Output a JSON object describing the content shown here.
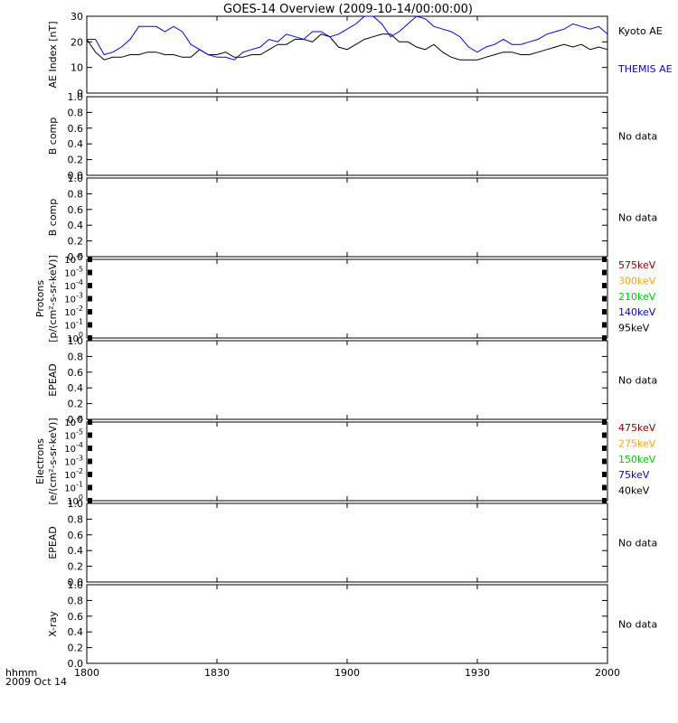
{
  "title": "GOES-14 Overview (2009-10-14/00:00:00)",
  "time_axis": {
    "label_line1": "hhmm",
    "label_line2": "2009 Oct 14",
    "ticks": [
      "1800",
      "1830",
      "1900",
      "1930",
      "2000"
    ]
  },
  "colors": {
    "black": "#000000",
    "blue": "#0000ff",
    "dark_red": "#8b0000",
    "orange": "#ffa500",
    "green": "#00cc00"
  },
  "chart_data": [
    {
      "type": "line",
      "panel": "ae",
      "ylabel": "AE Index [nT]",
      "ylim": [
        0,
        30
      ],
      "yticks": [
        "0",
        "10",
        "20",
        "30"
      ],
      "x_range_minutes": [
        0,
        120
      ],
      "series": [
        {
          "name": "Kyoto AE",
          "color": "#000000",
          "x": [
            0,
            2,
            4,
            6,
            8,
            10,
            12,
            14,
            16,
            18,
            20,
            22,
            24,
            26,
            28,
            30,
            32,
            34,
            36,
            38,
            40,
            42,
            44,
            46,
            48,
            50,
            52,
            54,
            56,
            58,
            60,
            62,
            64,
            66,
            68,
            70,
            72,
            74,
            76,
            78,
            80,
            82,
            84,
            86,
            88,
            90,
            92,
            94,
            96,
            98,
            100,
            102,
            104,
            106,
            108,
            110,
            112,
            114,
            116,
            118,
            120
          ],
          "values": [
            21,
            16,
            13,
            14,
            14,
            15,
            15,
            16,
            16,
            15,
            15,
            14,
            14,
            17,
            15,
            15,
            16,
            14,
            14,
            15,
            15,
            17,
            19,
            19,
            21,
            21,
            20,
            23,
            22,
            18,
            17,
            19,
            21,
            22,
            23,
            23,
            20,
            20,
            18,
            17,
            19,
            16,
            14,
            13,
            13,
            13,
            14,
            15,
            16,
            16,
            15,
            15,
            16,
            17,
            18,
            19,
            18,
            19,
            17,
            18,
            17
          ]
        },
        {
          "name": "THEMIS AE",
          "color": "#0000ff",
          "x": [
            0,
            2,
            4,
            6,
            8,
            10,
            12,
            14,
            16,
            18,
            20,
            22,
            24,
            26,
            28,
            30,
            32,
            34,
            36,
            38,
            40,
            42,
            44,
            46,
            48,
            50,
            52,
            54,
            56,
            58,
            60,
            62,
            64,
            66,
            68,
            70,
            72,
            74,
            76,
            78,
            80,
            82,
            84,
            86,
            88,
            90,
            92,
            94,
            96,
            98,
            100,
            102,
            104,
            106,
            108,
            110,
            112,
            114,
            116,
            118,
            120
          ],
          "values": [
            21,
            21,
            15,
            16,
            18,
            21,
            26,
            26,
            26,
            24,
            26,
            24,
            19,
            17,
            15,
            14,
            14,
            13,
            16,
            17,
            18,
            21,
            20,
            23,
            22,
            21,
            24,
            24,
            22,
            23,
            25,
            27,
            30,
            30,
            27,
            22,
            24,
            27,
            30,
            29,
            26,
            25,
            24,
            22,
            18,
            16,
            18,
            19,
            21,
            19,
            19,
            20,
            21,
            23,
            24,
            25,
            27,
            26,
            25,
            26,
            23
          ]
        }
      ]
    },
    {
      "type": "line",
      "panel": "b1",
      "ylabel": "B comp",
      "ylim": [
        0,
        1
      ],
      "yticks": [
        "0.0",
        "0.2",
        "0.4",
        "0.6",
        "0.8",
        "1.0"
      ],
      "note": "No data"
    },
    {
      "type": "line",
      "panel": "b2",
      "ylabel": "B comp",
      "ylim": [
        0,
        1
      ],
      "yticks": [
        "0.0",
        "0.2",
        "0.4",
        "0.6",
        "0.8",
        "1.0"
      ],
      "note": "No data"
    },
    {
      "type": "line",
      "panel": "protons",
      "ylabel_line1": "Protons",
      "ylabel_line2": "[p/(cm²-s-sr-keV)]",
      "ylim": [
        1e-06,
        1
      ],
      "log": true,
      "yticks": [
        "0",
        "-1",
        "-2",
        "-3",
        "-4",
        "-5",
        "-6"
      ],
      "legend": [
        {
          "label": "575keV",
          "color": "#8b0000"
        },
        {
          "label": "300keV",
          "color": "#ffa500"
        },
        {
          "label": "210keV",
          "color": "#00cc00"
        },
        {
          "label": "140keV",
          "color": "#0000ff"
        },
        {
          "label": "95keV",
          "color": "#000000"
        }
      ]
    },
    {
      "type": "line",
      "panel": "epead1",
      "ylabel": "EPEAD",
      "ylim": [
        0,
        1
      ],
      "yticks": [
        "0.0",
        "0.2",
        "0.4",
        "0.6",
        "0.8",
        "1.0"
      ],
      "note": "No data"
    },
    {
      "type": "line",
      "panel": "electrons",
      "ylabel_line1": "Electrons",
      "ylabel_line2": "[e/(cm²-s-sr-keV)]",
      "ylim": [
        1e-06,
        1
      ],
      "log": true,
      "yticks": [
        "0",
        "-1",
        "-2",
        "-3",
        "-4",
        "-5",
        "-6"
      ],
      "legend": [
        {
          "label": "475keV",
          "color": "#8b0000"
        },
        {
          "label": "275keV",
          "color": "#ffa500"
        },
        {
          "label": "150keV",
          "color": "#00cc00"
        },
        {
          "label": "75keV",
          "color": "#0000ff"
        },
        {
          "label": "40keV",
          "color": "#000000"
        }
      ]
    },
    {
      "type": "line",
      "panel": "epead2",
      "ylabel": "EPEAD",
      "ylim": [
        0,
        1
      ],
      "yticks": [
        "0.0",
        "0.2",
        "0.4",
        "0.6",
        "0.8",
        "1.0"
      ],
      "note": "No data"
    },
    {
      "type": "line",
      "panel": "xray",
      "ylabel": "X-ray",
      "ylim": [
        0,
        1
      ],
      "yticks": [
        "0.0",
        "0.2",
        "0.4",
        "0.6",
        "0.8",
        "1.0"
      ],
      "note": "No data"
    }
  ]
}
